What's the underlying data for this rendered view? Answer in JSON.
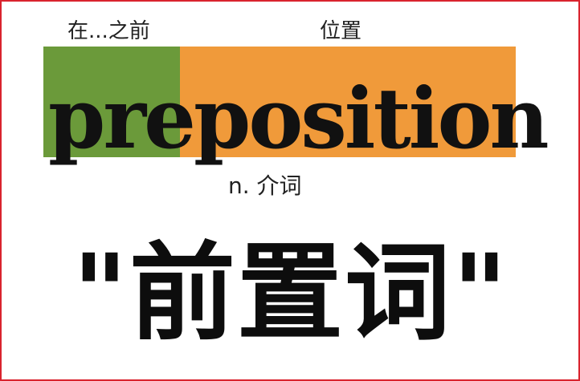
{
  "labels": {
    "prefix_meaning": "在...之前",
    "root_meaning": "位置",
    "part_of_speech": "n. 介词"
  },
  "word": {
    "prefix": "pre",
    "root": "position"
  },
  "translation": "\"前置词\"",
  "colors": {
    "prefix_bg": "#6b9a3a",
    "root_bg": "#f09a3a",
    "frame_border": "#d9232e"
  }
}
